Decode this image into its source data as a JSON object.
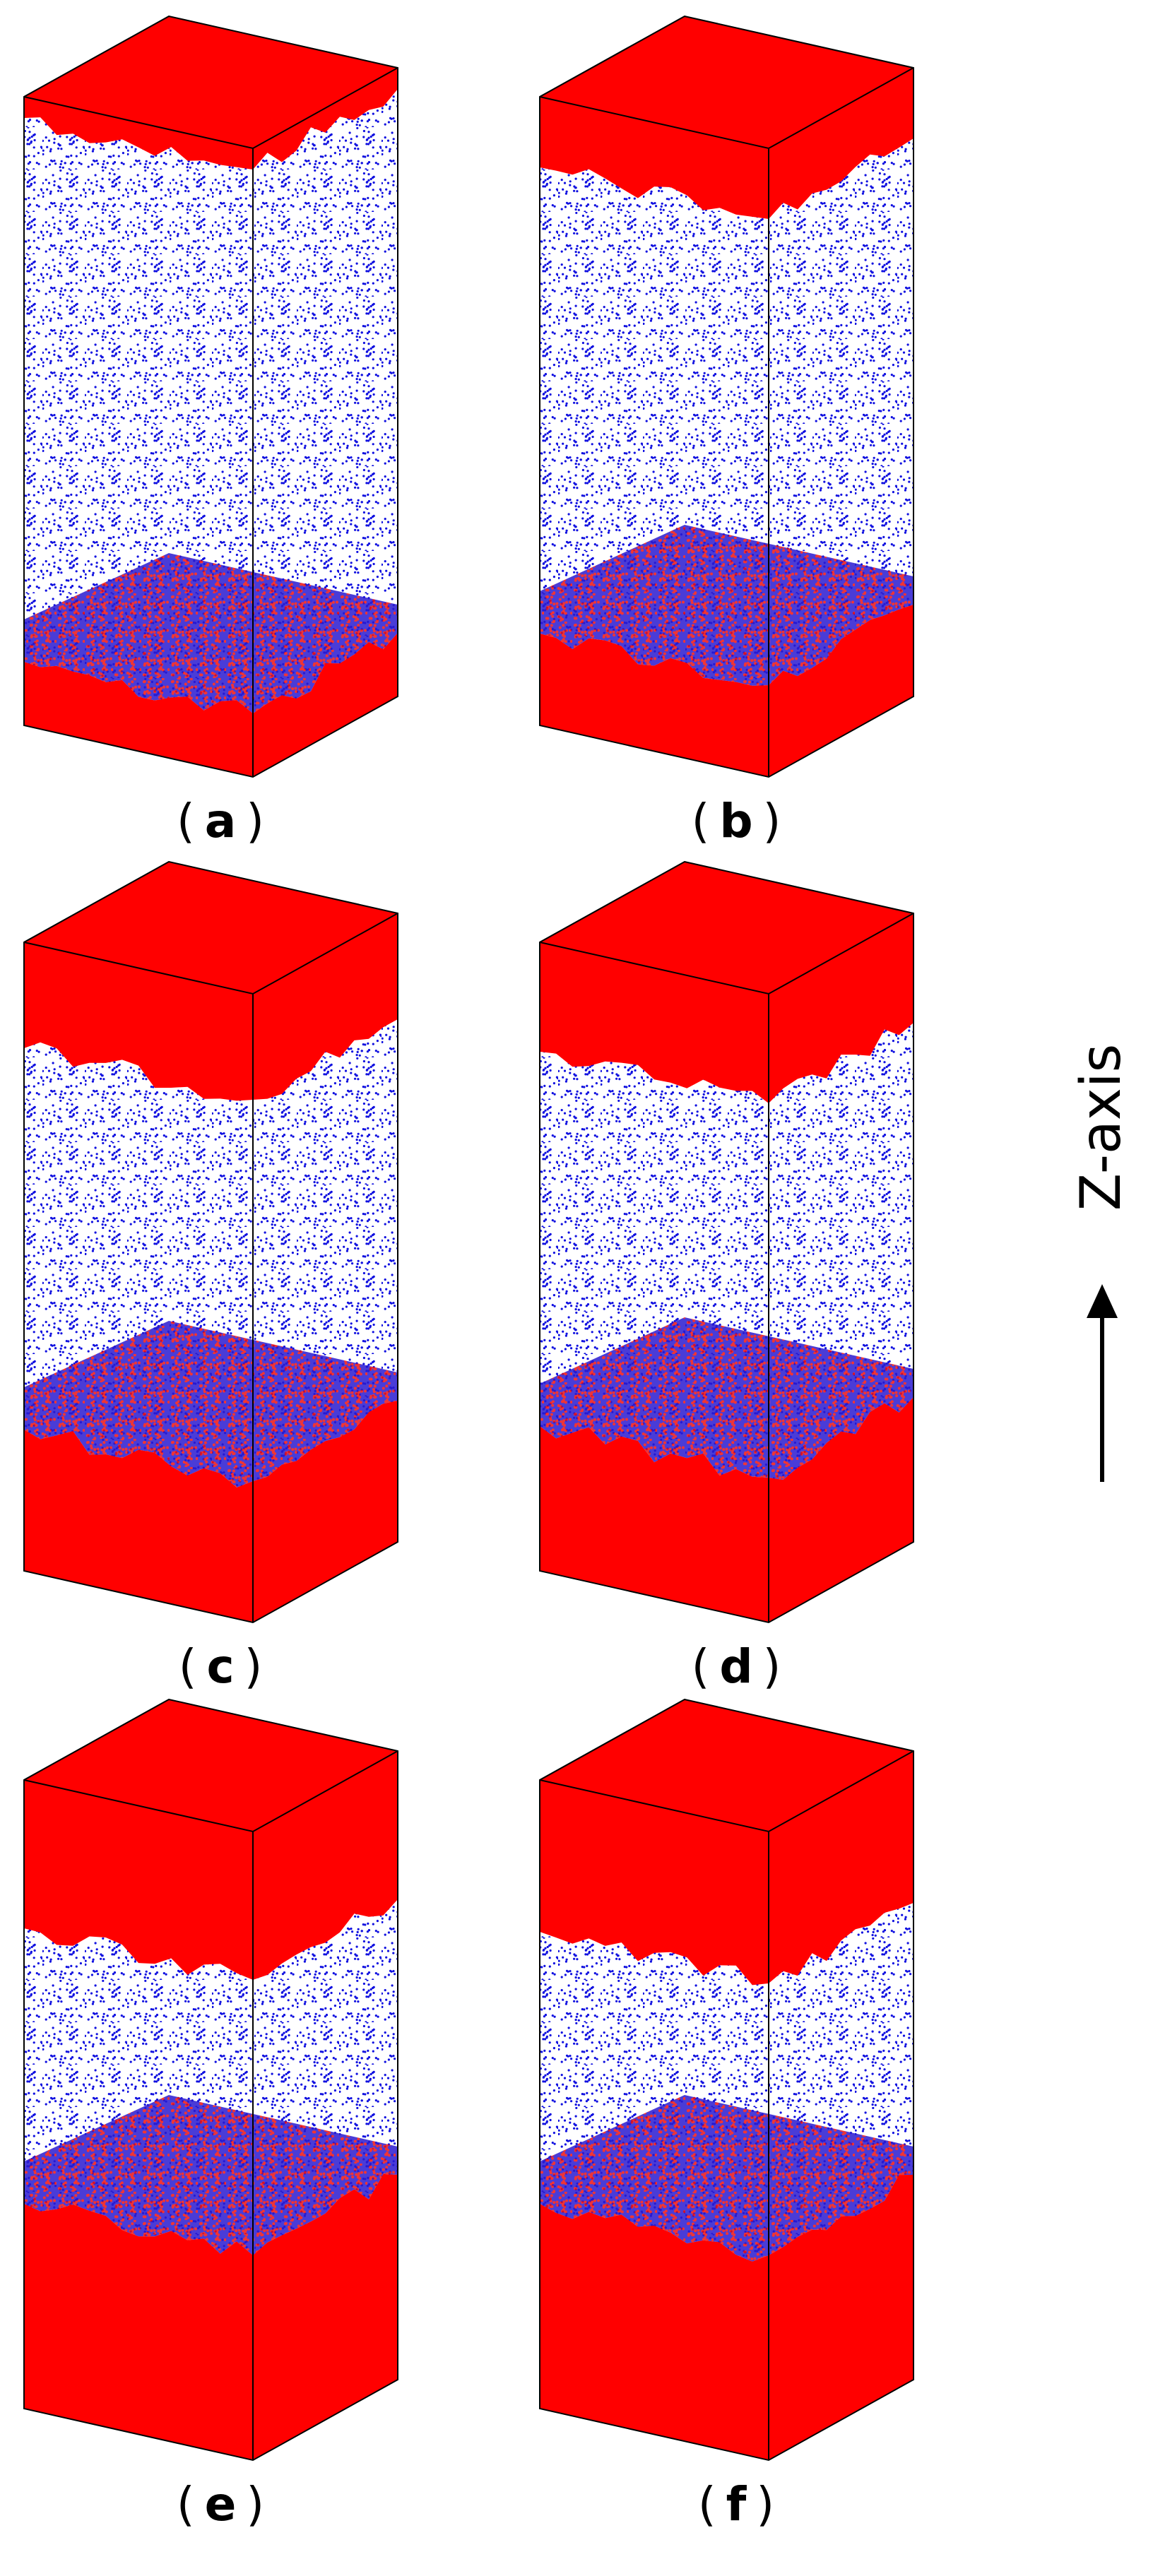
{
  "label_open": "(",
  "label_close": ")",
  "panels": [
    {
      "label": "a"
    },
    {
      "label": "b"
    },
    {
      "label": "c"
    },
    {
      "label": "d"
    },
    {
      "label": "e"
    },
    {
      "label": "f"
    }
  ],
  "axis_label": "Z-axis"
}
